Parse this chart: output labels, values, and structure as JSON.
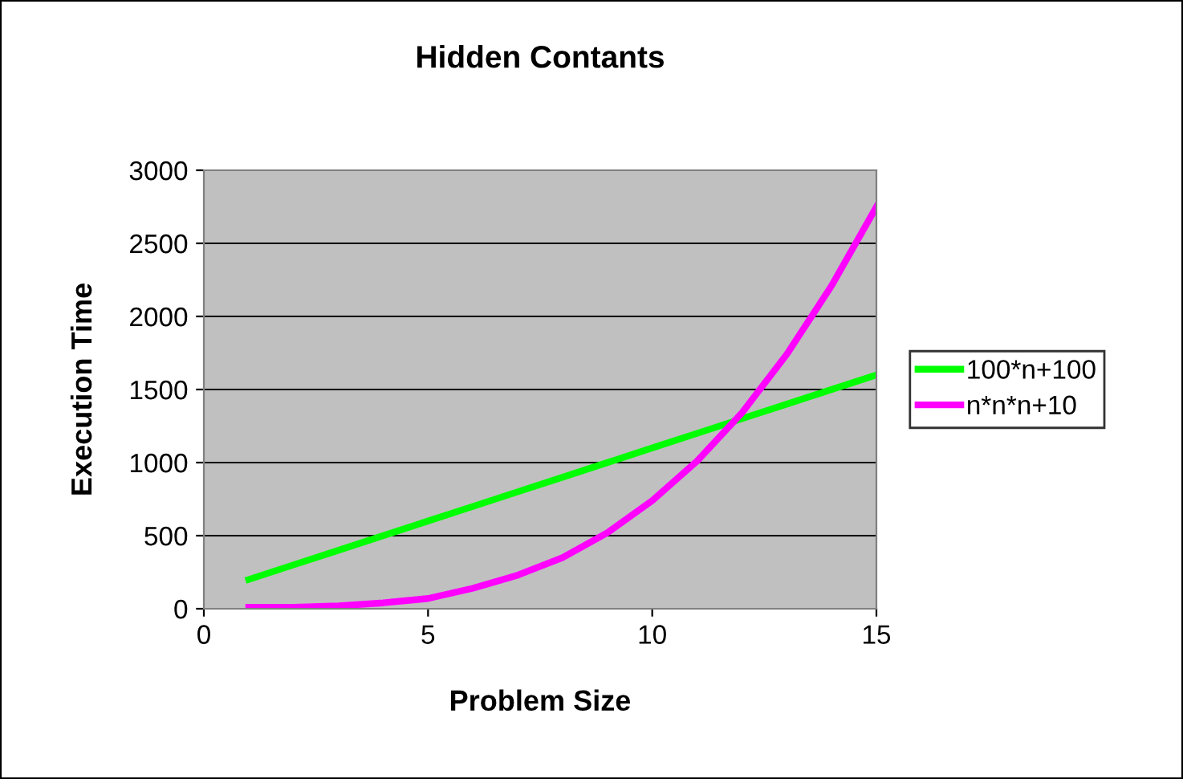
{
  "chart_data": {
    "type": "line",
    "title": "Hidden Contants",
    "xlabel": "Problem Size",
    "ylabel": "Execution Time",
    "x": [
      1,
      2,
      3,
      4,
      5,
      6,
      7,
      8,
      9,
      10,
      11,
      12,
      13,
      14,
      15
    ],
    "series": [
      {
        "name": "100*n+100",
        "color": "#00ff00",
        "values": [
          200,
          300,
          400,
          500,
          600,
          700,
          800,
          900,
          1000,
          1100,
          1200,
          1300,
          1400,
          1500,
          1600
        ]
      },
      {
        "name": "n*n*n+10",
        "color": "#ff00ff",
        "values": [
          10,
          10,
          20,
          40,
          70,
          140,
          230,
          350,
          520,
          740,
          1010,
          1340,
          1740,
          2210,
          2750
        ]
      }
    ],
    "xlim": [
      0,
      15
    ],
    "xticks": [
      0,
      5,
      10,
      15
    ],
    "ylim": [
      0,
      3000
    ],
    "yticks": [
      0,
      500,
      1000,
      1500,
      2000,
      2500,
      3000
    ],
    "grid": "y",
    "legend": "right",
    "marker": "none",
    "line_style": "solid"
  }
}
